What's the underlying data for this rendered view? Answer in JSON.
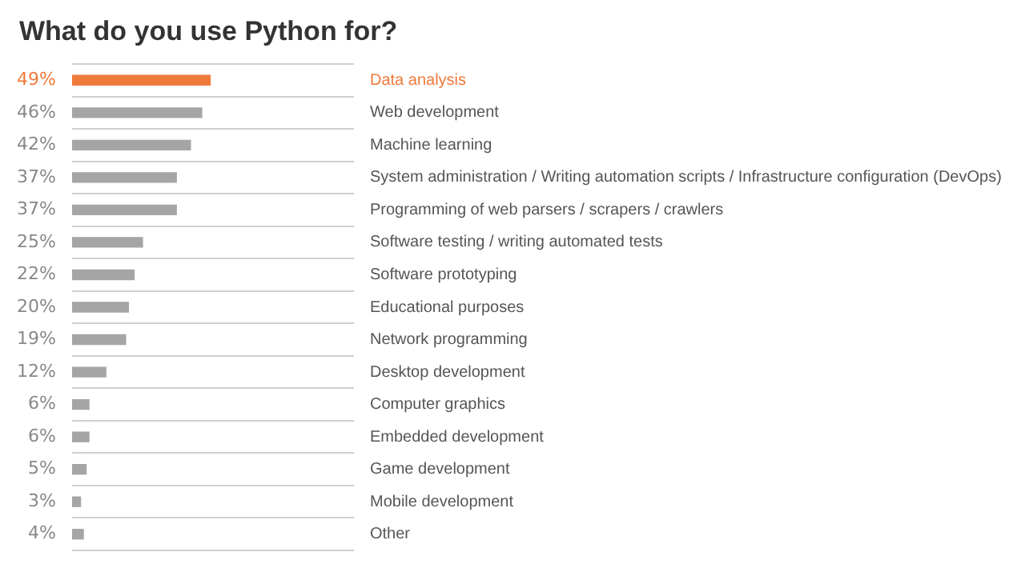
{
  "chart_data": {
    "type": "bar",
    "orientation": "horizontal",
    "title": "What do you use Python for?",
    "categories": [
      "Data analysis",
      "Web development",
      "Machine learning",
      "System administration / Writing automation scripts / Infrastructure configuration (DevOps)",
      "Programming of web parsers / scrapers / crawlers",
      "Software testing / writing automated tests",
      "Software prototyping",
      "Educational purposes",
      "Network programming",
      "Desktop development",
      "Computer graphics",
      "Embedded development",
      "Game development",
      "Mobile development",
      "Other"
    ],
    "values": [
      49,
      46,
      42,
      37,
      37,
      25,
      22,
      20,
      19,
      12,
      6,
      6,
      5,
      3,
      4
    ],
    "value_labels": [
      "49%",
      "46%",
      "42%",
      "37%",
      "37%",
      "25%",
      "22%",
      "20%",
      "19%",
      "12%",
      "6%",
      "6%",
      "5%",
      "3%",
      "4%"
    ],
    "colors": [
      "#f07a3c",
      "#a5a5a5",
      "#a5a5a5",
      "#a5a5a5",
      "#a5a5a5",
      "#a5a5a5",
      "#a5a5a5",
      "#a5a5a5",
      "#a5a5a5",
      "#a5a5a5",
      "#a5a5a5",
      "#a5a5a5",
      "#a5a5a5",
      "#a5a5a5",
      "#a5a5a5"
    ],
    "xlim": [
      0,
      100
    ],
    "grid": "y",
    "legend": false,
    "tick_labels": "y"
  }
}
